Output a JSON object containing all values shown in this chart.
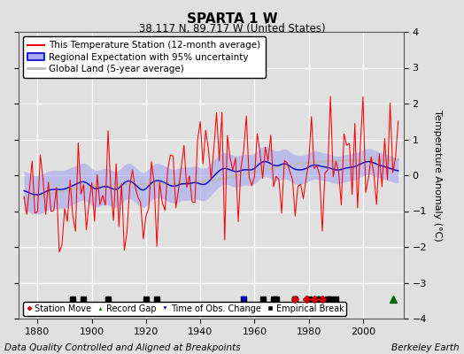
{
  "title": "SPARTA 1 W",
  "subtitle": "38.117 N, 89.717 W (United States)",
  "ylabel": "Temperature Anomaly (°C)",
  "xlabel_left": "Data Quality Controlled and Aligned at Breakpoints",
  "xlabel_right": "Berkeley Earth",
  "ylim": [
    -4,
    4
  ],
  "xlim": [
    1873,
    2015
  ],
  "xticks": [
    1880,
    1900,
    1920,
    1940,
    1960,
    1980,
    2000
  ],
  "yticks": [
    -4,
    -3,
    -2,
    -1,
    0,
    1,
    2,
    3,
    4
  ],
  "background_color": "#e0e0e0",
  "plot_bg_color": "#e0e0e0",
  "grid_color": "#ffffff",
  "station_color": "#ff0000",
  "regional_color": "#0000cc",
  "regional_fill_color": "#aaaaee",
  "global_color": "#bbbbbb",
  "event_markers": {
    "empirical_breaks": [
      1893,
      1897,
      1906,
      1920,
      1924,
      1956,
      1963,
      1967,
      1968,
      1975,
      1980,
      1983,
      1984,
      1987,
      1988,
      1990
    ],
    "station_moves": [
      1975,
      1979,
      1982,
      1985
    ],
    "record_gaps": [
      2011
    ],
    "time_of_obs_changes": [
      1956
    ]
  },
  "event_y": -3.45,
  "legend_fontsize": 7.5,
  "title_fontsize": 11,
  "subtitle_fontsize": 8.5,
  "tick_fontsize": 8,
  "footer_fontsize": 7.5,
  "seed_station": 42,
  "seed_regional": 7
}
